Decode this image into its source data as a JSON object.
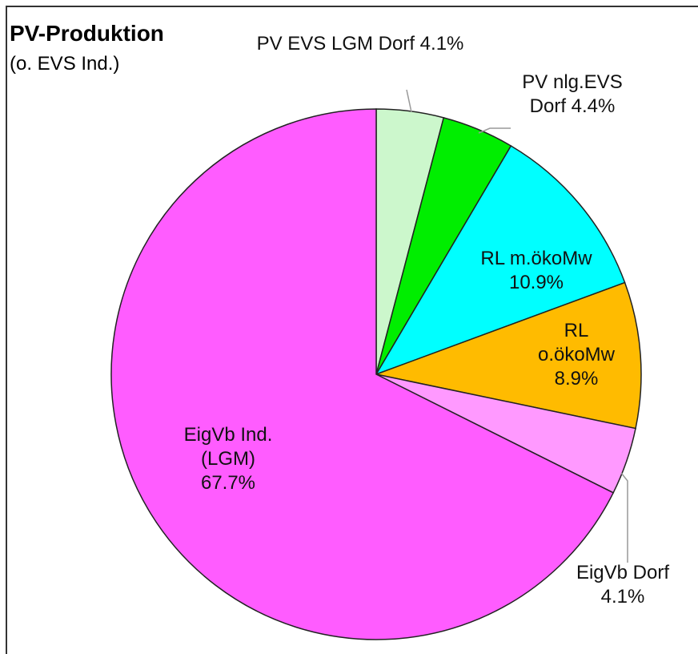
{
  "chart_data": {
    "type": "pie",
    "title": "PV-Produktion",
    "subtitle": "(o. EVS Ind.)",
    "categories": [
      "PV EVS LGM Dorf",
      "PV nlg.EVS Dorf",
      "RL m.ökoMw",
      "RL o.ökoMw",
      "EigVb Dorf",
      "EigVb Ind. (LGM)"
    ],
    "values": [
      4.1,
      4.4,
      10.9,
      8.9,
      4.1,
      67.7
    ],
    "value_labels": [
      "4.1%",
      "4.4%",
      "10.9%",
      "8.9%",
      "4.1%",
      "67.7%"
    ],
    "colors": [
      "#ccf7cc",
      "#00ee00",
      "#00ffff",
      "#ffbb00",
      "#ff99ff",
      "#ff5cff"
    ]
  }
}
